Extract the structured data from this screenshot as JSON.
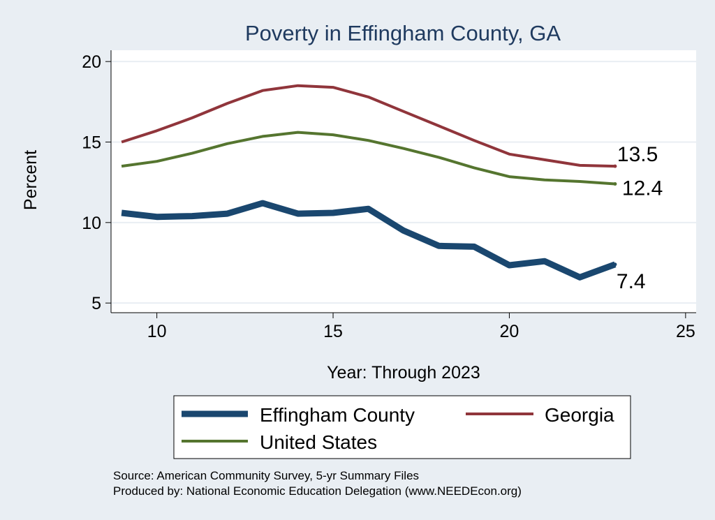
{
  "chart_data": {
    "type": "line",
    "title": "Poverty in Effingham County, GA",
    "xlabel": "Year: Through 2023",
    "ylabel": "Percent",
    "xlim": [
      8.7,
      25.3
    ],
    "ylim": [
      4.4,
      20.7
    ],
    "xticks": [
      10,
      15,
      20,
      25
    ],
    "yticks": [
      5,
      10,
      15,
      20
    ],
    "grid": "horizontal",
    "legend_position": "bottom",
    "x": [
      9,
      10,
      11,
      12,
      13,
      14,
      15,
      16,
      17,
      18,
      19,
      20,
      21,
      22,
      23
    ],
    "series": [
      {
        "name": "Effingham County",
        "color": "#1a476f",
        "values": [
          10.6,
          10.35,
          10.4,
          10.55,
          11.2,
          10.55,
          10.6,
          10.85,
          9.5,
          8.55,
          8.5,
          7.35,
          7.6,
          6.6,
          7.4
        ],
        "end_label": "7.4"
      },
      {
        "name": "Georgia",
        "color": "#90353b",
        "values": [
          15.0,
          15.7,
          16.5,
          17.4,
          18.2,
          18.5,
          18.4,
          17.8,
          16.9,
          16.0,
          15.1,
          14.25,
          13.9,
          13.55,
          13.5
        ],
        "end_label": "13.5"
      },
      {
        "name": "United States",
        "color": "#55752f",
        "values": [
          13.5,
          13.8,
          14.3,
          14.9,
          15.35,
          15.6,
          15.45,
          15.1,
          14.6,
          14.05,
          13.4,
          12.85,
          12.65,
          12.55,
          12.4
        ],
        "end_label": "12.4"
      }
    ]
  },
  "notes": {
    "source": "Source: American Community Survey, 5-yr Summary Files",
    "produced_by": "Produced by: National Economic Education Delegation (www.NEEDEcon.org)"
  }
}
